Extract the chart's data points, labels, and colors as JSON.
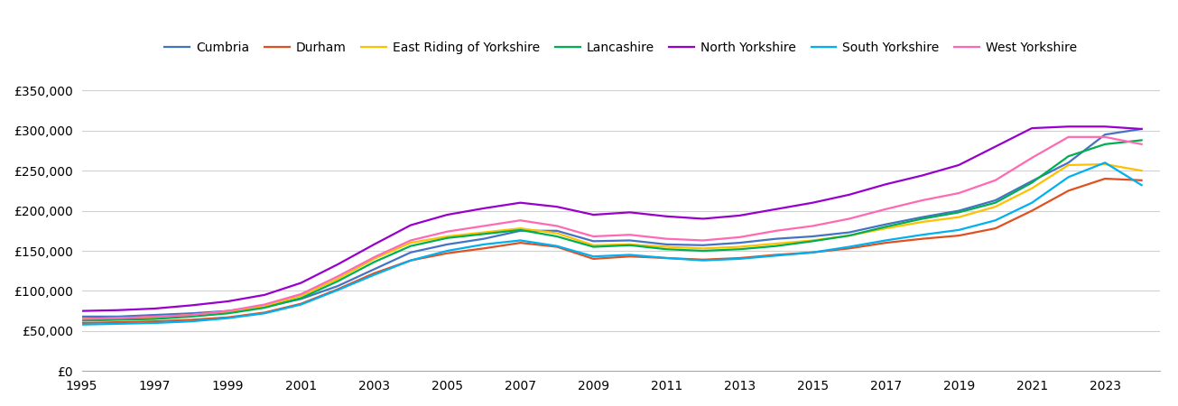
{
  "title": "",
  "years": [
    1995,
    1996,
    1997,
    1998,
    1999,
    2000,
    2001,
    2002,
    2003,
    2004,
    2005,
    2006,
    2007,
    2008,
    2009,
    2010,
    2011,
    2012,
    2013,
    2014,
    2015,
    2016,
    2017,
    2018,
    2019,
    2020,
    2021,
    2022,
    2023,
    2024
  ],
  "series": {
    "Cumbria": [
      68000,
      68000,
      70000,
      72000,
      75000,
      80000,
      90000,
      106000,
      127000,
      148000,
      158000,
      165000,
      175000,
      175000,
      162000,
      163000,
      158000,
      157000,
      160000,
      165000,
      168000,
      173000,
      183000,
      192000,
      200000,
      213000,
      237000,
      260000,
      295000,
      302000
    ],
    "Durham": [
      60000,
      61000,
      62000,
      64000,
      67000,
      73000,
      84000,
      102000,
      122000,
      138000,
      147000,
      153000,
      160000,
      155000,
      140000,
      143000,
      141000,
      139000,
      141000,
      145000,
      148000,
      153000,
      160000,
      165000,
      169000,
      178000,
      200000,
      225000,
      240000,
      238000
    ],
    "East Riding of Yorkshire": [
      65000,
      66000,
      67000,
      70000,
      74000,
      81000,
      94000,
      115000,
      140000,
      160000,
      168000,
      173000,
      178000,
      172000,
      157000,
      158000,
      155000,
      153000,
      155000,
      159000,
      163000,
      169000,
      178000,
      186000,
      192000,
      205000,
      228000,
      257000,
      258000,
      250000
    ],
    "Lancashire": [
      63000,
      64000,
      65000,
      68000,
      72000,
      79000,
      91000,
      112000,
      136000,
      156000,
      166000,
      171000,
      176000,
      168000,
      155000,
      157000,
      152000,
      150000,
      152000,
      156000,
      162000,
      169000,
      180000,
      190000,
      198000,
      210000,
      235000,
      268000,
      283000,
      288000
    ],
    "North Yorkshire": [
      75000,
      76000,
      78000,
      82000,
      87000,
      95000,
      110000,
      133000,
      158000,
      182000,
      195000,
      203000,
      210000,
      205000,
      195000,
      198000,
      193000,
      190000,
      194000,
      202000,
      210000,
      220000,
      233000,
      244000,
      257000,
      280000,
      303000,
      305000,
      305000,
      302000
    ],
    "South Yorkshire": [
      58000,
      59000,
      60000,
      62000,
      66000,
      72000,
      83000,
      101000,
      120000,
      138000,
      150000,
      158000,
      163000,
      156000,
      143000,
      145000,
      141000,
      138000,
      140000,
      144000,
      148000,
      155000,
      163000,
      170000,
      176000,
      188000,
      210000,
      242000,
      260000,
      232000
    ],
    "West Yorkshire": [
      65000,
      66000,
      68000,
      70000,
      75000,
      83000,
      96000,
      118000,
      142000,
      163000,
      174000,
      181000,
      188000,
      181000,
      168000,
      170000,
      165000,
      163000,
      167000,
      175000,
      181000,
      190000,
      202000,
      213000,
      222000,
      238000,
      266000,
      292000,
      292000,
      283000
    ]
  },
  "colors": {
    "Cumbria": "#4472C4",
    "Durham": "#E05020",
    "East Riding of Yorkshire": "#FFC000",
    "Lancashire": "#00B050",
    "North Yorkshire": "#9900CC",
    "South Yorkshire": "#00B0F0",
    "West Yorkshire": "#FF69B4"
  },
  "ylim": [
    0,
    370000
  ],
  "yticks": [
    0,
    50000,
    100000,
    150000,
    200000,
    250000,
    300000,
    350000
  ],
  "xlim": [
    1995,
    2024.5
  ],
  "background_color": "#ffffff",
  "grid_color": "#d0d0d0"
}
